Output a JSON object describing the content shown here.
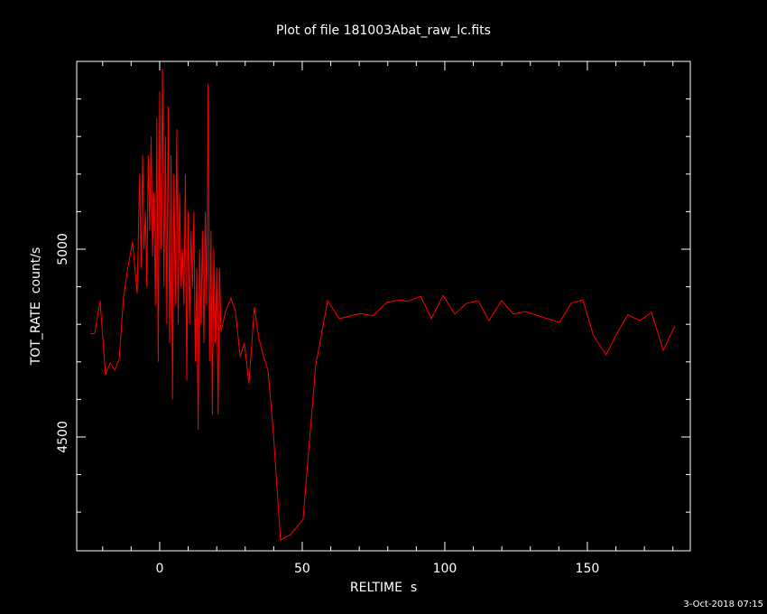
{
  "chart_data": {
    "type": "line",
    "title": "Plot of file 181003Abat_raw_lc.fits",
    "x_label": "RELTIME  s",
    "y_label": "TOT_RATE  count/s",
    "timestamp": "3-Oct-2018 07:15",
    "color": "#ff0000",
    "xlim": [
      -29.1,
      186.1
    ],
    "ylim": [
      4197,
      5500
    ],
    "xticks": [
      0,
      50,
      100,
      150
    ],
    "yticks": [
      4500,
      5000
    ],
    "xticks_minor": [
      -20,
      -10,
      10,
      20,
      30,
      40,
      60,
      70,
      80,
      90,
      110,
      120,
      130,
      140,
      160,
      170,
      180
    ],
    "yticks_minor": [
      4300,
      4400,
      4600,
      4700,
      4800,
      4900,
      5100,
      5200,
      5300,
      5400
    ],
    "x": [
      -24.4,
      -22.8,
      -20.9,
      -19.0,
      -17.4,
      -15.8,
      -14.2,
      -12.7,
      -11.1,
      -9.5,
      -7.9,
      -7,
      -6.5,
      -6,
      -5.5,
      -5,
      -4.5,
      -4,
      -3.5,
      -3,
      -2.5,
      -2,
      -1.5,
      -1,
      -0.5,
      0,
      0.5,
      1,
      1.5,
      2,
      2.5,
      3,
      3.5,
      4,
      4.5,
      5,
      5.5,
      6,
      6.5,
      7,
      7.5,
      8,
      8.5,
      9,
      9.5,
      10,
      10.5,
      11,
      11.5,
      12,
      12.5,
      13,
      13.5,
      14,
      14.5,
      15,
      15.5,
      16,
      16.5,
      17,
      17.5,
      18,
      18.5,
      19,
      19.5,
      20,
      20.5,
      21,
      21.5,
      23.1,
      25.0,
      26.6,
      28.2,
      29.7,
      31.3,
      33.2,
      34.8,
      36.4,
      38.0,
      39.9,
      42.4,
      45.9,
      50.3,
      54.7,
      58.9,
      63.0,
      70.6,
      74.7,
      79.7,
      83.9,
      87.0,
      91.5,
      95.3,
      99.4,
      103.5,
      107.6,
      111.7,
      115.5,
      119.9,
      124.1,
      128.2,
      140.2,
      144.3,
      148.4,
      152.2,
      156.6,
      160.1,
      164.2,
      168.4,
      172.5,
      176.6,
      180.7
    ],
    "values": [
      4774,
      4776,
      4863,
      4666,
      4697,
      4678,
      4707,
      4870,
      4954,
      5019,
      4882,
      5200,
      4950,
      5250,
      5000,
      5100,
      4900,
      5250,
      5050,
      5300,
      4980,
      5150,
      4850,
      5350,
      4700,
      5420,
      5000,
      5480,
      4900,
      5300,
      4800,
      5380,
      4750,
      5250,
      4600,
      5200,
      4850,
      5320,
      4800,
      5150,
      4900,
      5000,
      4850,
      5200,
      4650,
      5100,
      4800,
      5050,
      4900,
      5100,
      4700,
      4950,
      4520,
      5000,
      4800,
      5050,
      4750,
      5100,
      4850,
      5440,
      4700,
      5050,
      4560,
      5000,
      4750,
      4950,
      4560,
      4950,
      4780,
      4834,
      4870,
      4834,
      4714,
      4750,
      4642,
      4846,
      4762,
      4714,
      4678,
      4510,
      4226,
      4240,
      4281,
      4690,
      4863,
      4815,
      4829,
      4822,
      4858,
      4865,
      4861,
      4875,
      4815,
      4877,
      4827,
      4856,
      4863,
      4810,
      4863,
      4827,
      4834,
      4805,
      4856,
      4865,
      4769,
      4719,
      4772,
      4825,
      4810,
      4832,
      4731,
      4796
    ]
  }
}
